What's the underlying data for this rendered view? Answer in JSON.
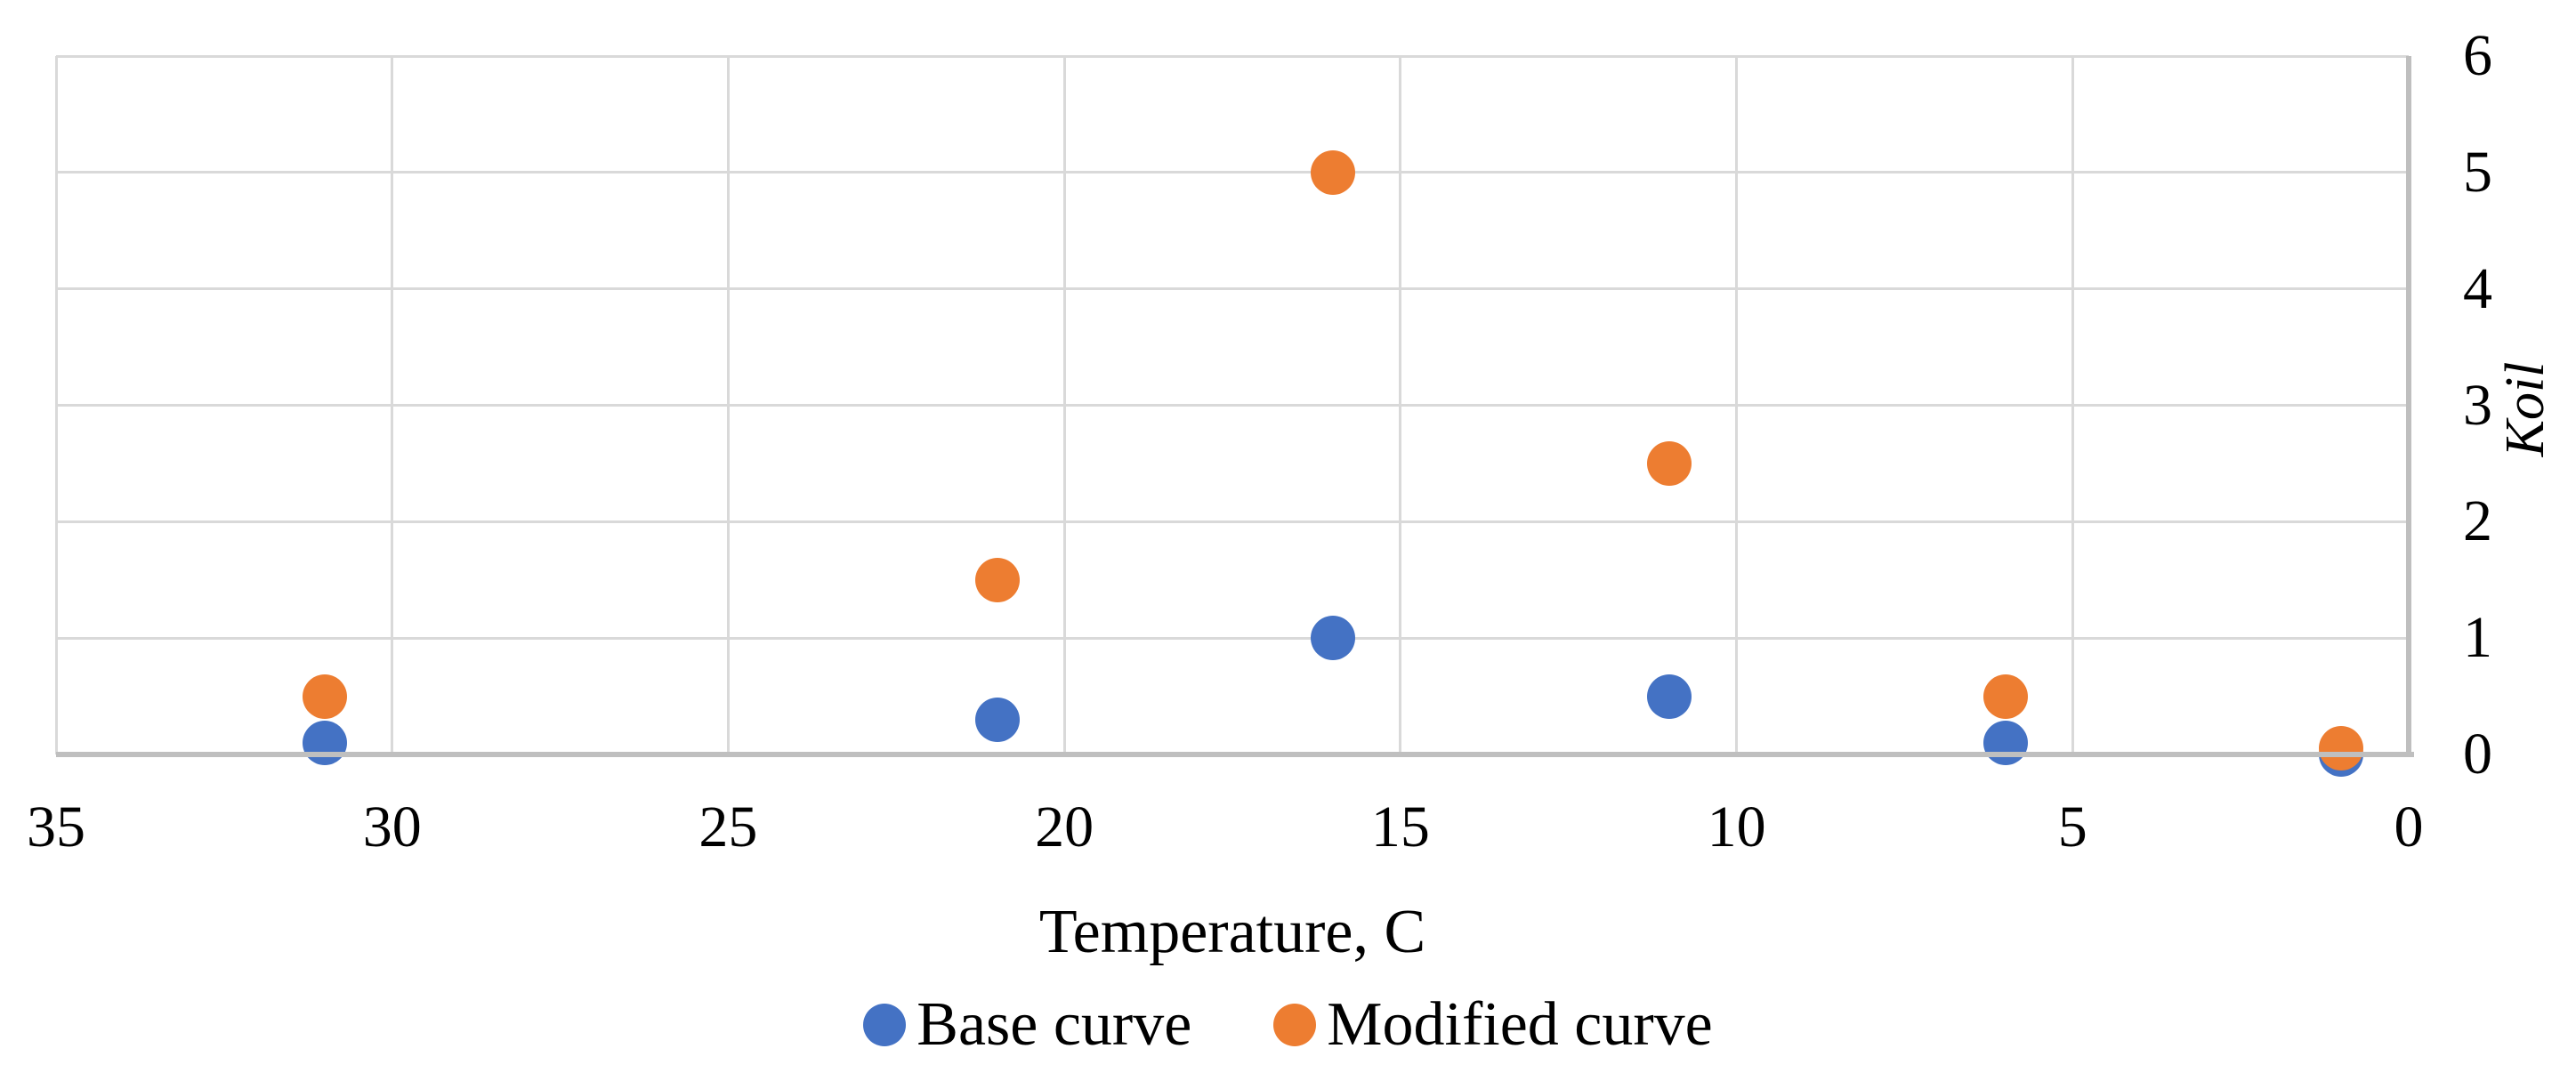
{
  "figure": {
    "background": "#FFFFFF"
  },
  "chart_data": {
    "type": "scatter",
    "title": "",
    "xlabel": "Temperature, C",
    "ylabel": "Koil",
    "xlim": [
      35,
      0
    ],
    "ylim": [
      0,
      6
    ],
    "x_axis_reversed": true,
    "y_axis_position": "right",
    "grid": true,
    "legend_position": "bottom",
    "x_ticks": [
      35,
      30,
      25,
      20,
      15,
      10,
      5,
      0
    ],
    "y_ticks": [
      6,
      5,
      4,
      3,
      2,
      1,
      0
    ],
    "series": [
      {
        "name": "Base curve",
        "color": "#4472C4",
        "x": [
          31,
          21,
          16,
          11,
          6,
          1
        ],
        "y": [
          0.1,
          0.3,
          1.0,
          0.5,
          0.1,
          0.0
        ]
      },
      {
        "name": "Modified curve",
        "color": "#ED7D31",
        "x": [
          31,
          21,
          16,
          11,
          6,
          1
        ],
        "y": [
          0.5,
          1.5,
          5.0,
          2.5,
          0.5,
          0.05
        ]
      }
    ],
    "colors": {
      "gridline": "#D9D9D9",
      "axis_line": "#BFBFBF",
      "text": "#000000"
    }
  }
}
